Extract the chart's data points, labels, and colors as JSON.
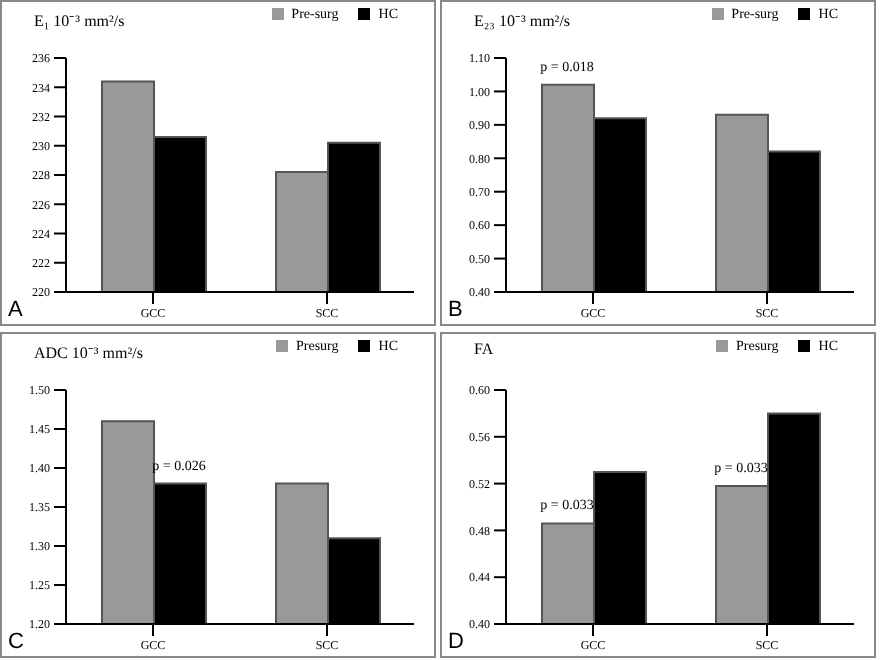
{
  "chart_data": [
    {
      "type": "bar",
      "title": "E₁ 10⁻³ mm²/s",
      "categories": [
        "GCC",
        "SCC"
      ],
      "legend": "top right",
      "grid": false,
      "series": [
        {
          "name": "Pre-surg",
          "color": "#999999",
          "values": [
            234.4,
            228.2
          ]
        },
        {
          "name": "HC",
          "color": "#000000",
          "values": [
            230.6,
            230.2
          ]
        }
      ],
      "ylim": [
        220,
        236
      ],
      "yticks": [
        220,
        222,
        224,
        226,
        228,
        230,
        232,
        234,
        236
      ],
      "annotations": [
        "A"
      ]
    },
    {
      "type": "bar",
      "title": "E₂₃ 10⁻³ mm²/s",
      "categories": [
        "GCC",
        "SCC"
      ],
      "legend": "top right",
      "grid": false,
      "series": [
        {
          "name": "Pre-surg",
          "color": "#999999",
          "values": [
            1.02,
            0.93
          ]
        },
        {
          "name": "HC",
          "color": "#000000",
          "values": [
            0.92,
            0.82
          ]
        }
      ],
      "ylim": [
        0.4,
        1.1
      ],
      "yticks": [
        {
          "value": 0.4,
          "label": "0.40"
        },
        {
          "value": 0.5,
          "label": "0.50"
        },
        {
          "value": 0.6,
          "label": "0.60"
        },
        {
          "value": 0.7,
          "label": "0.70"
        },
        {
          "value": 0.8,
          "label": "0.80"
        },
        {
          "value": 0.9,
          "label": "0.90"
        },
        {
          "value": 1.0,
          "label": "1.00"
        },
        {
          "value": 1.1,
          "label": "1.10"
        }
      ],
      "annotations": [
        "B",
        {
          "text": "p = 0.018",
          "x": "GCC",
          "y": 1.02
        }
      ]
    },
    {
      "type": "bar",
      "title": "ADC 10⁻³ mm²/s",
      "categories": [
        "GCC",
        "SCC"
      ],
      "legend": "top right",
      "grid": false,
      "series": [
        {
          "name": "Presurg",
          "color": "#999999",
          "values": [
            1.46,
            1.38
          ]
        },
        {
          "name": "HC",
          "color": "#000000",
          "values": [
            1.38,
            1.31
          ]
        }
      ],
      "ylim": [
        1.2,
        1.5
      ],
      "yticks": [
        {
          "value": 1.2,
          "label": "1.20"
        },
        {
          "value": 1.25,
          "label": "1.25"
        },
        {
          "value": 1.3,
          "label": "1.30"
        },
        {
          "value": 1.35,
          "label": "1.35"
        },
        {
          "value": 1.4,
          "label": "1.40"
        },
        {
          "value": 1.45,
          "label": "1.45"
        },
        {
          "value": 1.5,
          "label": "1.50"
        }
      ],
      "annotations": [
        "C",
        {
          "text": "p = 0.026",
          "x": "GCC",
          "y": 1.38
        }
      ]
    },
    {
      "type": "bar",
      "title": "FA",
      "categories": [
        "GCC",
        "SCC"
      ],
      "legend": "top right",
      "grid": false,
      "series": [
        {
          "name": "Presurg",
          "color": "#999999",
          "values": [
            0.486,
            0.518
          ]
        },
        {
          "name": "HC",
          "color": "#000000",
          "values": [
            0.53,
            0.58
          ]
        }
      ],
      "ylim": [
        0.4,
        0.6
      ],
      "yticks": [
        {
          "value": 0.4,
          "label": "0.40"
        },
        {
          "value": 0.44,
          "label": "0.44"
        },
        {
          "value": 0.48,
          "label": "0.48"
        },
        {
          "value": 0.52,
          "label": "0.52"
        },
        {
          "value": 0.56,
          "label": "0.56"
        },
        {
          "value": 0.6,
          "label": "0.60"
        }
      ],
      "annotations": [
        "D",
        {
          "text": "p = 0.033",
          "x": "GCC",
          "y": 0.486
        },
        {
          "text": "p = 0.033",
          "x": "SCC",
          "y": 0.518
        }
      ]
    }
  ]
}
